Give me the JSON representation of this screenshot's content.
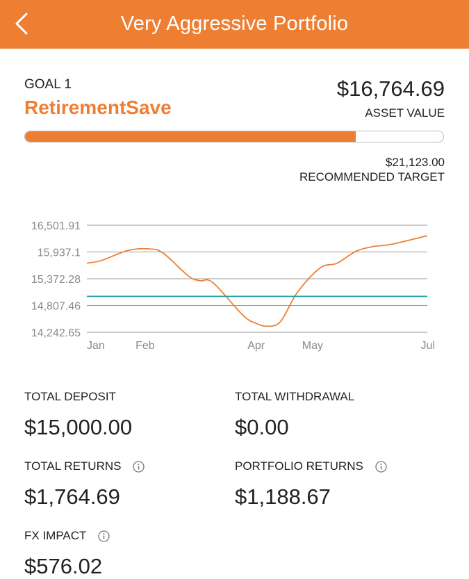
{
  "header": {
    "title": "Very Aggressive Portfolio",
    "back_icon": "chevron-left-icon",
    "bg_color": "#ee7f32"
  },
  "goal": {
    "number_label": "GOAL 1",
    "name": "RetirementSave",
    "asset_value": "$16,764.69",
    "asset_label": "ASSET VALUE",
    "progress_fraction": 0.79,
    "target_value": "$21,123.00",
    "target_label": "RECOMMENDED TARGET"
  },
  "chart_data": {
    "type": "line",
    "y_ticks": [
      "16,501.91",
      "15,937.1",
      "15,372.28",
      "14,807.46",
      "14,242.65"
    ],
    "x_ticks": [
      "Jan",
      "Feb",
      "Apr",
      "May",
      "Jul"
    ],
    "ylim": [
      14242.65,
      16501.91
    ],
    "grid": true,
    "series": [
      {
        "color": "#ee7f32",
        "points": [
          [
            "Jan 1",
            15700
          ],
          [
            "Jan 9",
            15760
          ],
          [
            "Jan 23",
            15970
          ],
          [
            "Feb 4",
            16000
          ],
          [
            "Feb 11",
            15900
          ],
          [
            "Feb 24",
            15430
          ],
          [
            "Mar 2",
            15330
          ],
          [
            "Mar 9",
            15290
          ],
          [
            "Mar 25",
            14600
          ],
          [
            "Apr 1",
            14430
          ],
          [
            "Apr 7",
            14370
          ],
          [
            "Apr 14",
            14470
          ],
          [
            "Apr 23",
            15090
          ],
          [
            "May 5",
            15600
          ],
          [
            "May 14",
            15700
          ],
          [
            "May 24",
            15950
          ],
          [
            "Jun 2",
            16050
          ],
          [
            "Jun 12",
            16100
          ],
          [
            "Jul 1",
            16280
          ]
        ]
      },
      {
        "color": "#1e9ea6",
        "points": [
          [
            "Jan 1",
            15000
          ],
          [
            "Jul 1",
            15000
          ]
        ]
      }
    ]
  },
  "stats": {
    "total_deposit": {
      "label": "TOTAL DEPOSIT",
      "value": "$15,000.00"
    },
    "total_withdrawal": {
      "label": "TOTAL WITHDRAWAL",
      "value": "$0.00"
    },
    "total_returns": {
      "label": "TOTAL RETURNS",
      "value": "$1,764.69",
      "icon": "info-icon"
    },
    "portfolio_returns": {
      "label": "PORTFOLIO RETURNS",
      "value": "$1,188.67",
      "icon": "info-icon"
    },
    "fx_impact": {
      "label": "FX IMPACT",
      "value": "$576.02",
      "icon": "info-icon"
    }
  }
}
